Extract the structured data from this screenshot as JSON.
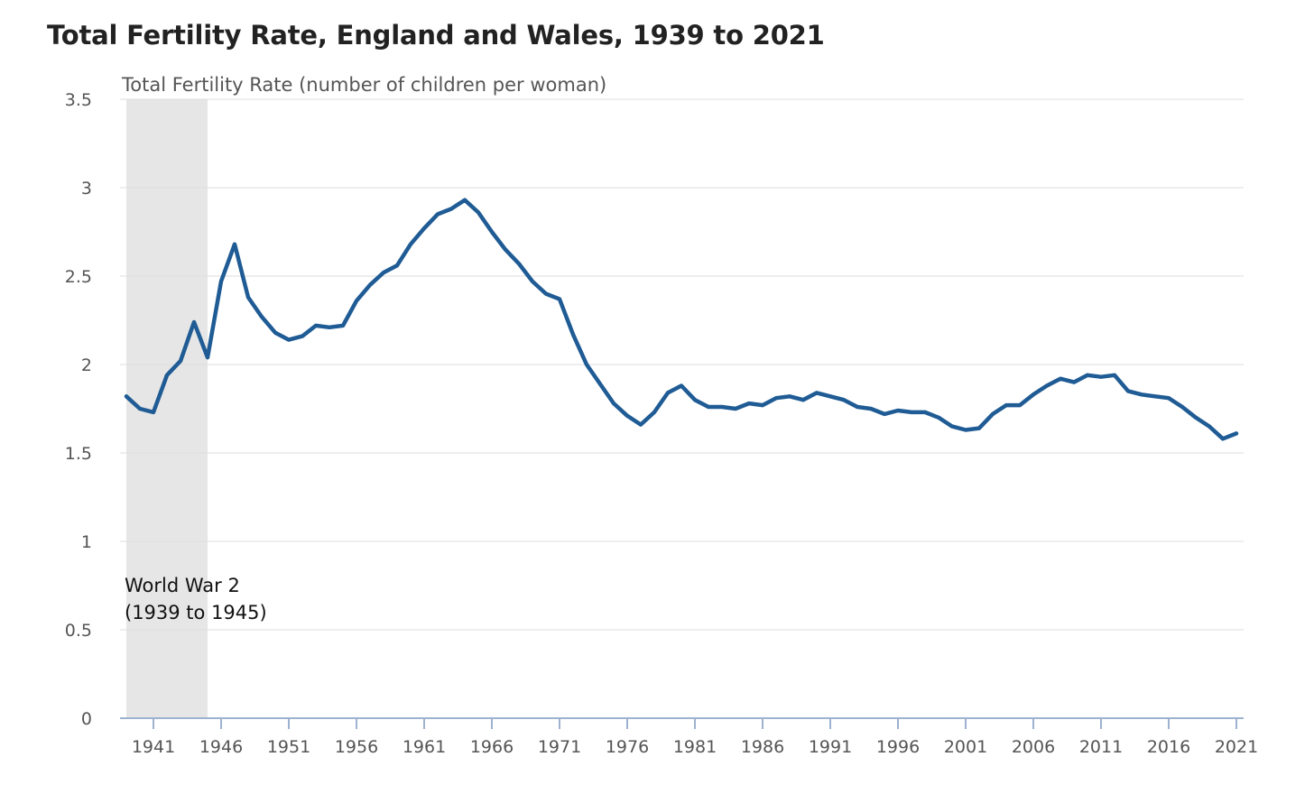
{
  "header": {
    "title": "Total Fertility Rate, England and Wales, 1939 to 2021"
  },
  "chart_data": {
    "type": "line",
    "title": "Total Fertility Rate, England and Wales, 1939 to 2021",
    "ylabel": "Total Fertility Rate (number of children per woman)",
    "xlabel": "",
    "xlim": [
      1939,
      2021
    ],
    "ylim": [
      0,
      3.5
    ],
    "x_ticks": [
      "1941",
      "1946",
      "1951",
      "1956",
      "1961",
      "1966",
      "1971",
      "1976",
      "1981",
      "1986",
      "1991",
      "1996",
      "2001",
      "2006",
      "2011",
      "2016",
      "2021"
    ],
    "y_ticks": [
      "0",
      "0.5",
      "1",
      "1.5",
      "2",
      "2.5",
      "3",
      "3.5"
    ],
    "grid": "horizontal",
    "line_color": "#1f5b94",
    "shade_color": "#e6e6e6",
    "shaded_region": {
      "x_start": 1939,
      "x_end": 1945,
      "label_line1": "World War 2",
      "label_line2": "(1939 to 1945)"
    },
    "x": [
      1939,
      1940,
      1941,
      1942,
      1943,
      1944,
      1945,
      1946,
      1947,
      1948,
      1949,
      1950,
      1951,
      1952,
      1953,
      1954,
      1955,
      1956,
      1957,
      1958,
      1959,
      1960,
      1961,
      1962,
      1963,
      1964,
      1965,
      1966,
      1967,
      1968,
      1969,
      1970,
      1971,
      1972,
      1973,
      1974,
      1975,
      1976,
      1977,
      1978,
      1979,
      1980,
      1981,
      1982,
      1983,
      1984,
      1985,
      1986,
      1987,
      1988,
      1989,
      1990,
      1991,
      1992,
      1993,
      1994,
      1995,
      1996,
      1997,
      1998,
      1999,
      2000,
      2001,
      2002,
      2003,
      2004,
      2005,
      2006,
      2007,
      2008,
      2009,
      2010,
      2011,
      2012,
      2013,
      2014,
      2015,
      2016,
      2017,
      2018,
      2019,
      2020,
      2021
    ],
    "values": [
      1.82,
      1.75,
      1.73,
      1.94,
      2.02,
      2.24,
      2.04,
      2.47,
      2.68,
      2.38,
      2.27,
      2.18,
      2.14,
      2.16,
      2.22,
      2.21,
      2.22,
      2.36,
      2.45,
      2.52,
      2.56,
      2.68,
      2.77,
      2.85,
      2.88,
      2.93,
      2.86,
      2.75,
      2.65,
      2.57,
      2.47,
      2.4,
      2.37,
      2.17,
      2.0,
      1.89,
      1.78,
      1.71,
      1.66,
      1.73,
      1.84,
      1.88,
      1.8,
      1.76,
      1.76,
      1.75,
      1.78,
      1.77,
      1.81,
      1.82,
      1.8,
      1.84,
      1.82,
      1.8,
      1.76,
      1.75,
      1.72,
      1.74,
      1.73,
      1.73,
      1.7,
      1.65,
      1.63,
      1.64,
      1.72,
      1.77,
      1.77,
      1.83,
      1.88,
      1.92,
      1.9,
      1.94,
      1.93,
      1.94,
      1.85,
      1.83,
      1.82,
      1.81,
      1.76,
      1.7,
      1.65,
      1.58,
      1.61
    ]
  }
}
